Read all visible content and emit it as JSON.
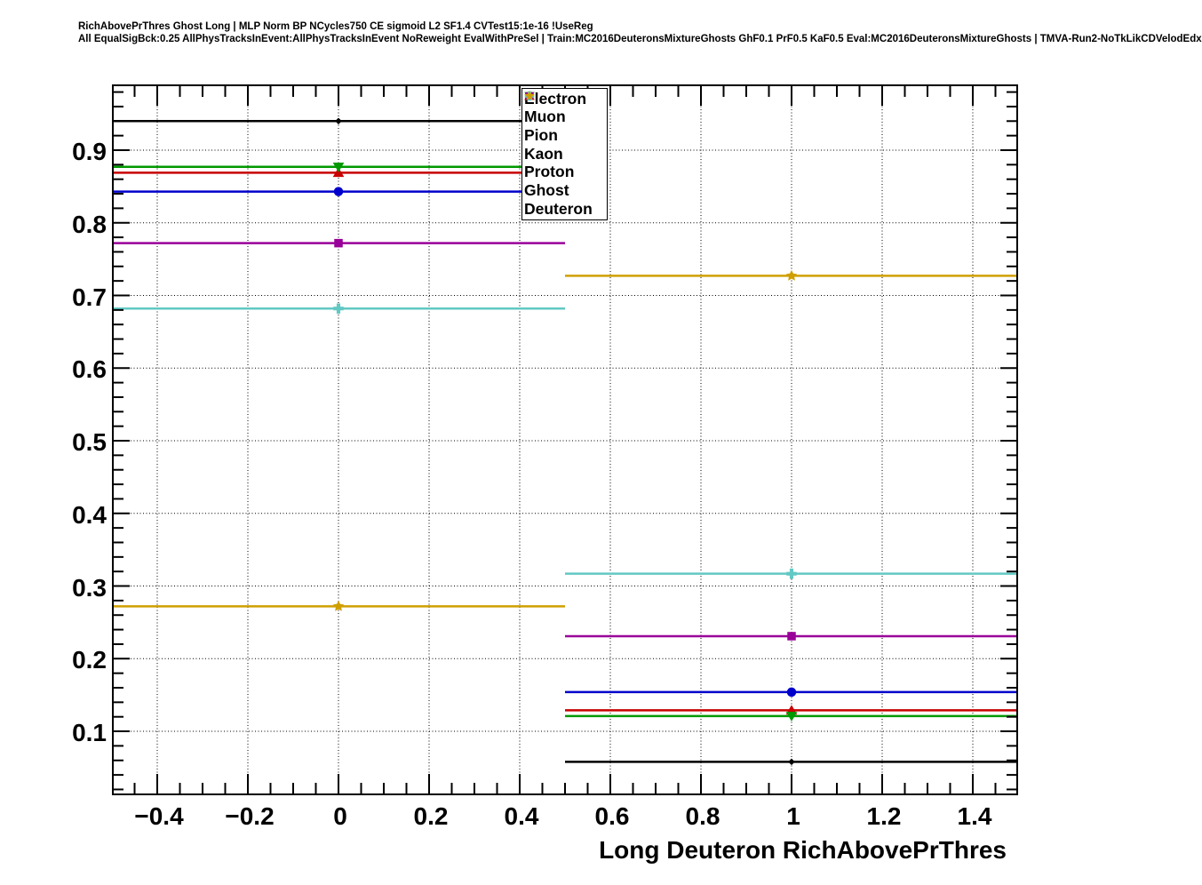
{
  "header": {
    "line1": "RichAbovePrThres Ghost Long | MLP Norm BP NCycles750 CE sigmoid L2 SF1.4 CVTest15:1e-16 !UseReg",
    "line2": "All EqualSigBck:0.25 AllPhysTracksInEvent:AllPhysTracksInEvent NoReweight EvalWithPreSel | Train:MC2016DeuteronsMixtureGhosts GhF0.1 PrF0.5 KaF0.5 Eval:MC2016DeuteronsMixtureGhosts | TMVA-Run2-NoTkLikCDVelodEdx"
  },
  "chart_data": {
    "type": "line",
    "title": "RichAbovePrThres Ghost Long",
    "xlabel": "Long Deuteron RichAbovePrThres",
    "ylabel": "",
    "xlim": [
      -0.5,
      1.5
    ],
    "ylim": [
      0.012,
      0.9905
    ],
    "grid": "dotted-on-major-ticks",
    "legend_position": "top-center",
    "bins": [
      {
        "lo": -0.5,
        "hi": 0.5,
        "center": 0
      },
      {
        "lo": 0.5,
        "hi": 1.5,
        "center": 1
      }
    ],
    "x_major_ticks": [
      -0.4,
      -0.2,
      0,
      0.2,
      0.4,
      0.6,
      0.8,
      1.0,
      1.2,
      1.4
    ],
    "x_tick_labels": [
      "−0.4",
      "−0.2",
      "0",
      "0.2",
      "0.4",
      "0.6",
      "0.8",
      "1",
      "1.2",
      "1.4"
    ],
    "x_minor_step": 0.05,
    "y_major_ticks": [
      0.1,
      0.2,
      0.3,
      0.4,
      0.5,
      0.6,
      0.7,
      0.8,
      0.9
    ],
    "y_tick_labels": [
      "0.1",
      "0.2",
      "0.3",
      "0.4",
      "0.5",
      "0.6",
      "0.7",
      "0.8",
      "0.9"
    ],
    "y_minor_step": 0.02,
    "series": [
      {
        "name": "Electron",
        "color": "#c80000",
        "marker": "triangle-up",
        "values": [
          0.869,
          0.129
        ]
      },
      {
        "name": "Muon",
        "color": "#0000cc",
        "marker": "circle",
        "values": [
          0.843,
          0.154
        ]
      },
      {
        "name": "Pion",
        "color": "#009900",
        "marker": "triangle-down",
        "values": [
          0.877,
          0.121
        ]
      },
      {
        "name": "Kaon",
        "color": "#990099",
        "marker": "square",
        "values": [
          0.772,
          0.231
        ]
      },
      {
        "name": "Proton",
        "color": "#62c8c4",
        "marker": "cross",
        "values": [
          0.682,
          0.317
        ]
      },
      {
        "name": "Ghost",
        "color": "#000000",
        "marker": "diamond",
        "values": [
          0.94,
          0.058
        ]
      },
      {
        "name": "Deuteron",
        "color": "#cf9f00",
        "marker": "star",
        "values": [
          0.272,
          0.727
        ]
      }
    ]
  }
}
